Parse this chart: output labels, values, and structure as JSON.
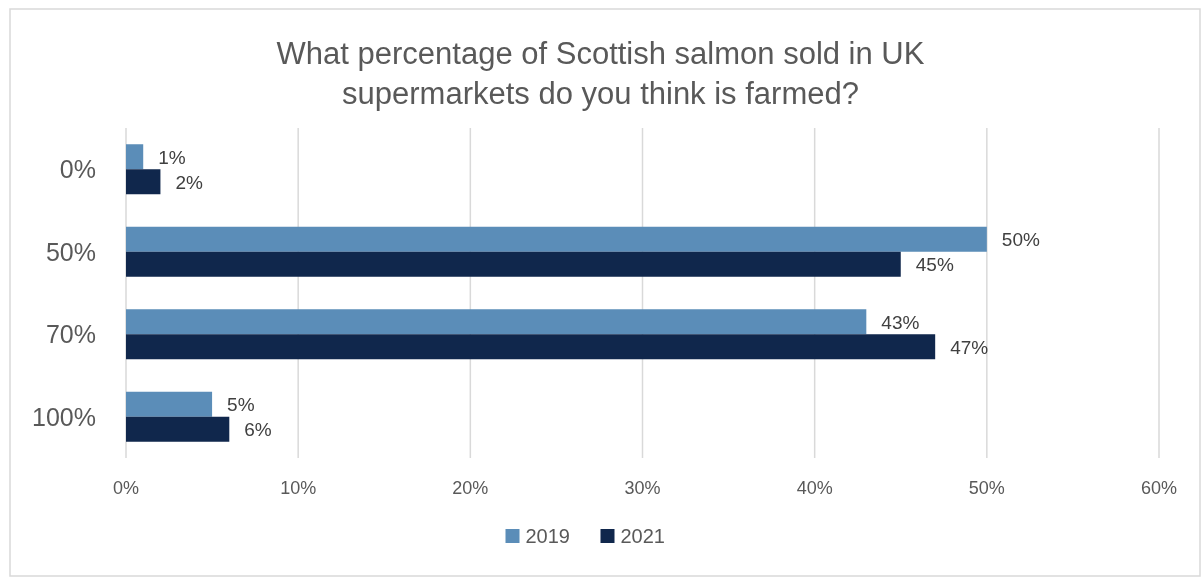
{
  "chart_data": {
    "type": "bar",
    "orientation": "horizontal",
    "title": "What percentage of Scottish salmon sold in UK supermarkets do you think is farmed?",
    "categories": [
      "0%",
      "50%",
      "70%",
      "100%"
    ],
    "series": [
      {
        "name": "2019",
        "color": "#5b8db8",
        "values": [
          1,
          50,
          43,
          5
        ],
        "value_labels": [
          "1%",
          "50%",
          "43%",
          "5%"
        ]
      },
      {
        "name": "2021",
        "color": "#10274c",
        "values": [
          2,
          45,
          47,
          6
        ],
        "value_labels": [
          "2%",
          "45%",
          "47%",
          "6%"
        ]
      }
    ],
    "xlim": [
      0,
      60
    ],
    "xticks": [
      {
        "value": 0,
        "label": "0%"
      },
      {
        "value": 10,
        "label": "10%"
      },
      {
        "value": 20,
        "label": "20%"
      },
      {
        "value": 30,
        "label": "30%"
      },
      {
        "value": 40,
        "label": "40%"
      },
      {
        "value": 50,
        "label": "50%"
      },
      {
        "value": 60,
        "label": "60%"
      }
    ],
    "grid": "x",
    "legend": "bottom"
  }
}
